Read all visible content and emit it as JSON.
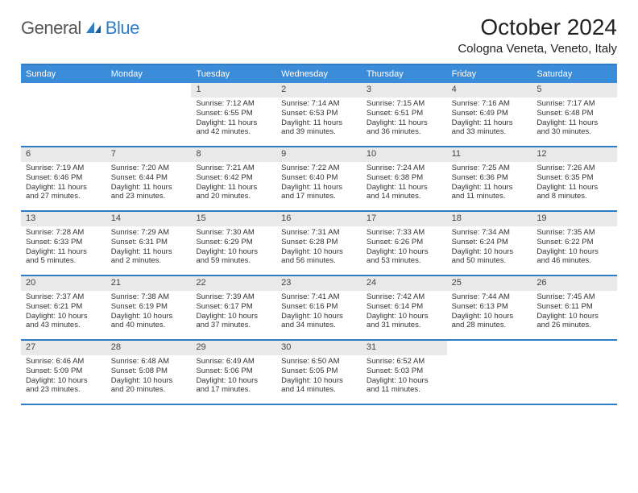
{
  "logo": {
    "part1": "General",
    "part2": "Blue"
  },
  "title": "October 2024",
  "location": "Cologna Veneta, Veneto, Italy",
  "colors": {
    "header_bg": "#3a8bd8",
    "border": "#2f7dc4",
    "daybar_bg": "#e9e9e9",
    "text": "#333333",
    "logo_blue": "#2f7dc4"
  },
  "dayNames": [
    "Sunday",
    "Monday",
    "Tuesday",
    "Wednesday",
    "Thursday",
    "Friday",
    "Saturday"
  ],
  "weeks": [
    [
      {
        "day": "",
        "sunrise": "",
        "sunset": "",
        "daylight1": "",
        "daylight2": ""
      },
      {
        "day": "",
        "sunrise": "",
        "sunset": "",
        "daylight1": "",
        "daylight2": ""
      },
      {
        "day": "1",
        "sunrise": "Sunrise: 7:12 AM",
        "sunset": "Sunset: 6:55 PM",
        "daylight1": "Daylight: 11 hours",
        "daylight2": "and 42 minutes."
      },
      {
        "day": "2",
        "sunrise": "Sunrise: 7:14 AM",
        "sunset": "Sunset: 6:53 PM",
        "daylight1": "Daylight: 11 hours",
        "daylight2": "and 39 minutes."
      },
      {
        "day": "3",
        "sunrise": "Sunrise: 7:15 AM",
        "sunset": "Sunset: 6:51 PM",
        "daylight1": "Daylight: 11 hours",
        "daylight2": "and 36 minutes."
      },
      {
        "day": "4",
        "sunrise": "Sunrise: 7:16 AM",
        "sunset": "Sunset: 6:49 PM",
        "daylight1": "Daylight: 11 hours",
        "daylight2": "and 33 minutes."
      },
      {
        "day": "5",
        "sunrise": "Sunrise: 7:17 AM",
        "sunset": "Sunset: 6:48 PM",
        "daylight1": "Daylight: 11 hours",
        "daylight2": "and 30 minutes."
      }
    ],
    [
      {
        "day": "6",
        "sunrise": "Sunrise: 7:19 AM",
        "sunset": "Sunset: 6:46 PM",
        "daylight1": "Daylight: 11 hours",
        "daylight2": "and 27 minutes."
      },
      {
        "day": "7",
        "sunrise": "Sunrise: 7:20 AM",
        "sunset": "Sunset: 6:44 PM",
        "daylight1": "Daylight: 11 hours",
        "daylight2": "and 23 minutes."
      },
      {
        "day": "8",
        "sunrise": "Sunrise: 7:21 AM",
        "sunset": "Sunset: 6:42 PM",
        "daylight1": "Daylight: 11 hours",
        "daylight2": "and 20 minutes."
      },
      {
        "day": "9",
        "sunrise": "Sunrise: 7:22 AM",
        "sunset": "Sunset: 6:40 PM",
        "daylight1": "Daylight: 11 hours",
        "daylight2": "and 17 minutes."
      },
      {
        "day": "10",
        "sunrise": "Sunrise: 7:24 AM",
        "sunset": "Sunset: 6:38 PM",
        "daylight1": "Daylight: 11 hours",
        "daylight2": "and 14 minutes."
      },
      {
        "day": "11",
        "sunrise": "Sunrise: 7:25 AM",
        "sunset": "Sunset: 6:36 PM",
        "daylight1": "Daylight: 11 hours",
        "daylight2": "and 11 minutes."
      },
      {
        "day": "12",
        "sunrise": "Sunrise: 7:26 AM",
        "sunset": "Sunset: 6:35 PM",
        "daylight1": "Daylight: 11 hours",
        "daylight2": "and 8 minutes."
      }
    ],
    [
      {
        "day": "13",
        "sunrise": "Sunrise: 7:28 AM",
        "sunset": "Sunset: 6:33 PM",
        "daylight1": "Daylight: 11 hours",
        "daylight2": "and 5 minutes."
      },
      {
        "day": "14",
        "sunrise": "Sunrise: 7:29 AM",
        "sunset": "Sunset: 6:31 PM",
        "daylight1": "Daylight: 11 hours",
        "daylight2": "and 2 minutes."
      },
      {
        "day": "15",
        "sunrise": "Sunrise: 7:30 AM",
        "sunset": "Sunset: 6:29 PM",
        "daylight1": "Daylight: 10 hours",
        "daylight2": "and 59 minutes."
      },
      {
        "day": "16",
        "sunrise": "Sunrise: 7:31 AM",
        "sunset": "Sunset: 6:28 PM",
        "daylight1": "Daylight: 10 hours",
        "daylight2": "and 56 minutes."
      },
      {
        "day": "17",
        "sunrise": "Sunrise: 7:33 AM",
        "sunset": "Sunset: 6:26 PM",
        "daylight1": "Daylight: 10 hours",
        "daylight2": "and 53 minutes."
      },
      {
        "day": "18",
        "sunrise": "Sunrise: 7:34 AM",
        "sunset": "Sunset: 6:24 PM",
        "daylight1": "Daylight: 10 hours",
        "daylight2": "and 50 minutes."
      },
      {
        "day": "19",
        "sunrise": "Sunrise: 7:35 AM",
        "sunset": "Sunset: 6:22 PM",
        "daylight1": "Daylight: 10 hours",
        "daylight2": "and 46 minutes."
      }
    ],
    [
      {
        "day": "20",
        "sunrise": "Sunrise: 7:37 AM",
        "sunset": "Sunset: 6:21 PM",
        "daylight1": "Daylight: 10 hours",
        "daylight2": "and 43 minutes."
      },
      {
        "day": "21",
        "sunrise": "Sunrise: 7:38 AM",
        "sunset": "Sunset: 6:19 PM",
        "daylight1": "Daylight: 10 hours",
        "daylight2": "and 40 minutes."
      },
      {
        "day": "22",
        "sunrise": "Sunrise: 7:39 AM",
        "sunset": "Sunset: 6:17 PM",
        "daylight1": "Daylight: 10 hours",
        "daylight2": "and 37 minutes."
      },
      {
        "day": "23",
        "sunrise": "Sunrise: 7:41 AM",
        "sunset": "Sunset: 6:16 PM",
        "daylight1": "Daylight: 10 hours",
        "daylight2": "and 34 minutes."
      },
      {
        "day": "24",
        "sunrise": "Sunrise: 7:42 AM",
        "sunset": "Sunset: 6:14 PM",
        "daylight1": "Daylight: 10 hours",
        "daylight2": "and 31 minutes."
      },
      {
        "day": "25",
        "sunrise": "Sunrise: 7:44 AM",
        "sunset": "Sunset: 6:13 PM",
        "daylight1": "Daylight: 10 hours",
        "daylight2": "and 28 minutes."
      },
      {
        "day": "26",
        "sunrise": "Sunrise: 7:45 AM",
        "sunset": "Sunset: 6:11 PM",
        "daylight1": "Daylight: 10 hours",
        "daylight2": "and 26 minutes."
      }
    ],
    [
      {
        "day": "27",
        "sunrise": "Sunrise: 6:46 AM",
        "sunset": "Sunset: 5:09 PM",
        "daylight1": "Daylight: 10 hours",
        "daylight2": "and 23 minutes."
      },
      {
        "day": "28",
        "sunrise": "Sunrise: 6:48 AM",
        "sunset": "Sunset: 5:08 PM",
        "daylight1": "Daylight: 10 hours",
        "daylight2": "and 20 minutes."
      },
      {
        "day": "29",
        "sunrise": "Sunrise: 6:49 AM",
        "sunset": "Sunset: 5:06 PM",
        "daylight1": "Daylight: 10 hours",
        "daylight2": "and 17 minutes."
      },
      {
        "day": "30",
        "sunrise": "Sunrise: 6:50 AM",
        "sunset": "Sunset: 5:05 PM",
        "daylight1": "Daylight: 10 hours",
        "daylight2": "and 14 minutes."
      },
      {
        "day": "31",
        "sunrise": "Sunrise: 6:52 AM",
        "sunset": "Sunset: 5:03 PM",
        "daylight1": "Daylight: 10 hours",
        "daylight2": "and 11 minutes."
      },
      {
        "day": "",
        "sunrise": "",
        "sunset": "",
        "daylight1": "",
        "daylight2": ""
      },
      {
        "day": "",
        "sunrise": "",
        "sunset": "",
        "daylight1": "",
        "daylight2": ""
      }
    ]
  ]
}
